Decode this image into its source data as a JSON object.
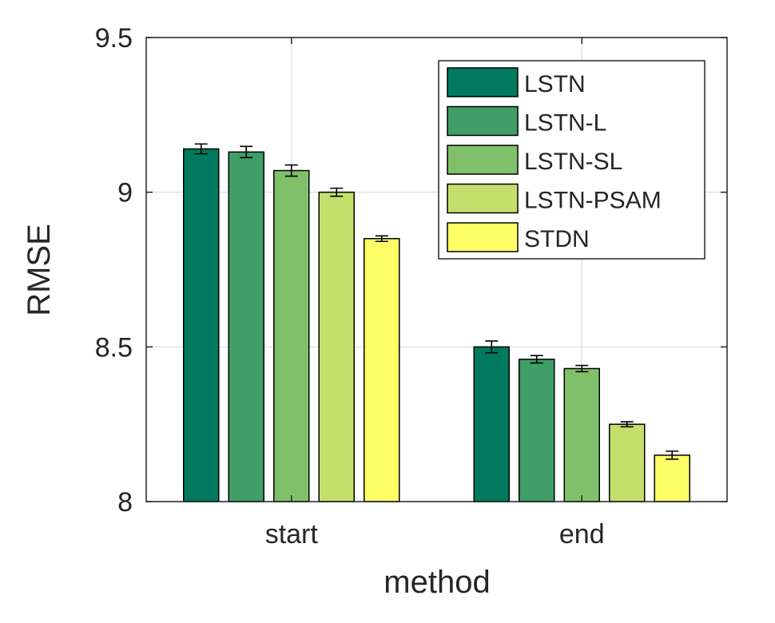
{
  "chart_data": {
    "type": "bar",
    "title": "",
    "xlabel": "method",
    "ylabel": "RMSE",
    "categories": [
      "start",
      "end"
    ],
    "ylim": [
      8,
      9.5
    ],
    "yticks": [
      "8",
      "8.5",
      "9",
      "9.5"
    ],
    "ytick_values": [
      8,
      8.5,
      9,
      9.5
    ],
    "grid": true,
    "legend_position": "top-right",
    "series": [
      {
        "name": "LSTN",
        "color": "#007a5e",
        "values": [
          9.14,
          8.5
        ],
        "errors": [
          0.016,
          0.019
        ]
      },
      {
        "name": "LSTN-L",
        "color": "#3f9f66",
        "values": [
          9.13,
          8.46
        ],
        "errors": [
          0.018,
          0.012
        ]
      },
      {
        "name": "LSTN-SL",
        "color": "#80c06a",
        "values": [
          9.07,
          8.43
        ],
        "errors": [
          0.018,
          0.01
        ]
      },
      {
        "name": "LSTN-PSAM",
        "color": "#c4e06c",
        "values": [
          9.0,
          8.25
        ],
        "errors": [
          0.013,
          0.008
        ]
      },
      {
        "name": "STDN",
        "color": "#ffff66",
        "values": [
          8.85,
          8.15
        ],
        "errors": [
          0.009,
          0.013
        ]
      }
    ]
  }
}
